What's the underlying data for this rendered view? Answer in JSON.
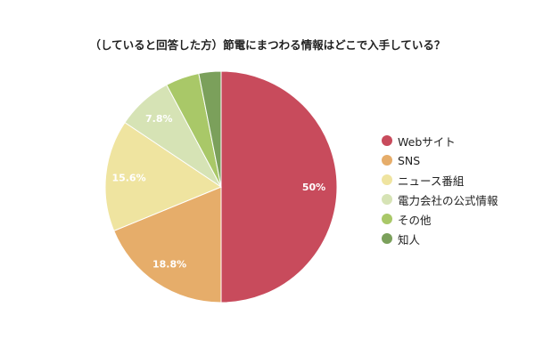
{
  "chart_data": {
    "type": "pie",
    "title": "（していると回答した方）節電にまつわる情報はどこで入手している？",
    "categories": [
      "Webサイト",
      "SNS",
      "ニュース番組",
      "電力会社の公式情報",
      "その他",
      "知人"
    ],
    "values": [
      50,
      18.8,
      15.6,
      7.8,
      4.7,
      3.1
    ],
    "data_labels": [
      "50%",
      "18.8%",
      "15.6%",
      "7.8%",
      "",
      ""
    ],
    "colors": [
      "#c84b5c",
      "#e6ad6a",
      "#efe4a0",
      "#d6e3b5",
      "#a9c868",
      "#7ba05b"
    ],
    "legend_position": "right",
    "start_angle_deg": 0,
    "direction": "clockwise"
  }
}
